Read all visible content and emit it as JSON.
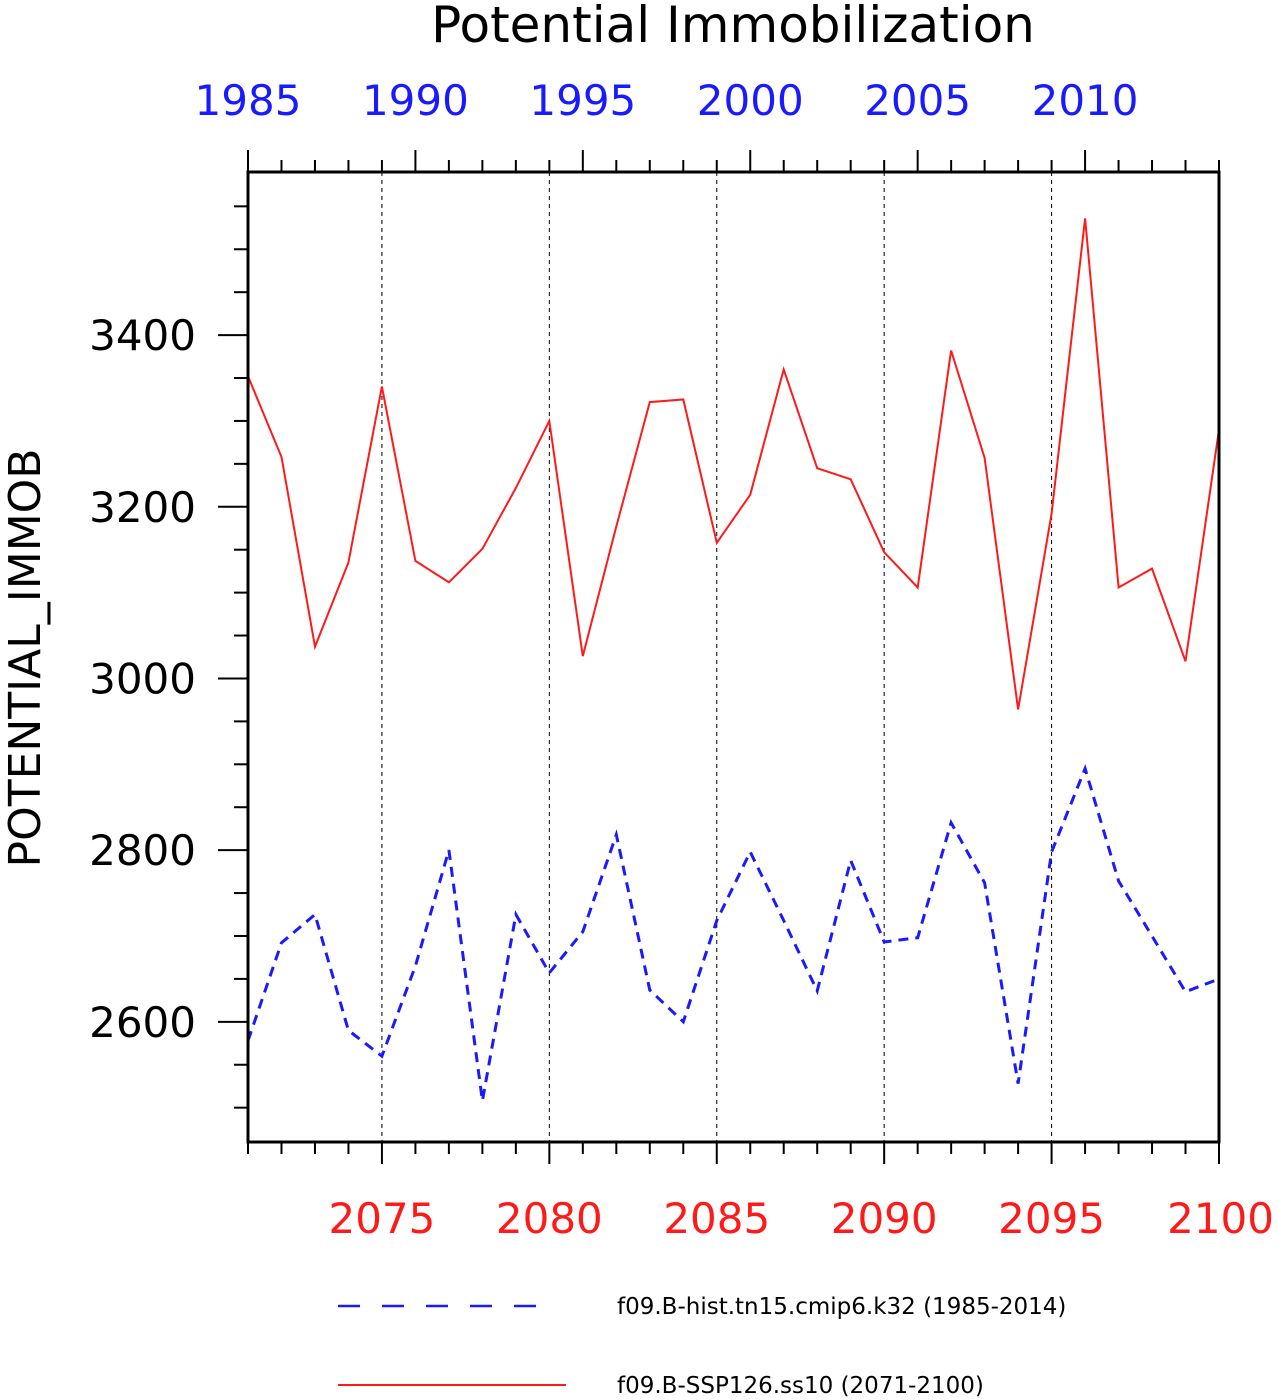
{
  "chart_data": {
    "type": "line",
    "title": "Potential Immobilization",
    "ylabel": "POTENTIAL_IMMOB",
    "xlabel": "",
    "ylim": [
      2460,
      3590
    ],
    "yticks_major": [
      2600,
      2800,
      3000,
      3200,
      3400
    ],
    "yticks_minor_step": 50,
    "top_axis": {
      "range": [
        1985,
        2014
      ],
      "ticks": [
        1985,
        1990,
        1995,
        2000,
        2005,
        2010
      ],
      "tick_labels": [
        "1985",
        "1990",
        "1995",
        "2000",
        "2005",
        "2010"
      ],
      "color": "#1a1aff"
    },
    "bottom_axis": {
      "range": [
        2071,
        2100
      ],
      "ticks": [
        2075,
        2080,
        2085,
        2090,
        2095,
        2100
      ],
      "tick_labels": [
        "2075",
        "2080",
        "2085",
        "2090",
        "2095",
        "2100"
      ],
      "color": "#ff1a1a"
    },
    "grid": "vertical dashed at major x ticks",
    "series": [
      {
        "name": "f09.B-hist.tn15.cmip6.k32 (1985-2014)",
        "axis": "top",
        "color": "#1a1aff",
        "style": "dashed",
        "x": [
          1985,
          1986,
          1987,
          1988,
          1989,
          1990,
          1991,
          1992,
          1993,
          1994,
          1995,
          1996,
          1997,
          1998,
          1999,
          2000,
          2001,
          2002,
          2003,
          2004,
          2005,
          2006,
          2007,
          2008,
          2009,
          2010,
          2011,
          2012,
          2013,
          2014
        ],
        "values": [
          2578,
          2692,
          2725,
          2590,
          2560,
          2665,
          2800,
          2508,
          2725,
          2657,
          2705,
          2818,
          2637,
          2600,
          2718,
          2798,
          2718,
          2636,
          2788,
          2693,
          2698,
          2832,
          2762,
          2528,
          2798,
          2895,
          2764,
          2700,
          2635,
          2650
        ]
      },
      {
        "name": "f09.B-SSP126.ss10 (2071-2100)",
        "axis": "bottom",
        "color": "#ff1a1a",
        "style": "solid",
        "x": [
          2071,
          2072,
          2073,
          2074,
          2075,
          2076,
          2077,
          2078,
          2079,
          2080,
          2081,
          2082,
          2083,
          2084,
          2085,
          2086,
          2087,
          2088,
          2089,
          2090,
          2091,
          2092,
          2093,
          2094,
          2095,
          2096,
          2097,
          2098,
          2099,
          2100
        ],
        "values": [
          3352,
          3258,
          3037,
          3135,
          3340,
          3137,
          3112,
          3151,
          3222,
          3300,
          3026,
          3177,
          3322,
          3325,
          3158,
          3214,
          3360,
          3245,
          3232,
          3147,
          3106,
          3382,
          3257,
          2964,
          3192,
          3536,
          3106,
          3128,
          3020,
          3290
        ]
      }
    ]
  }
}
